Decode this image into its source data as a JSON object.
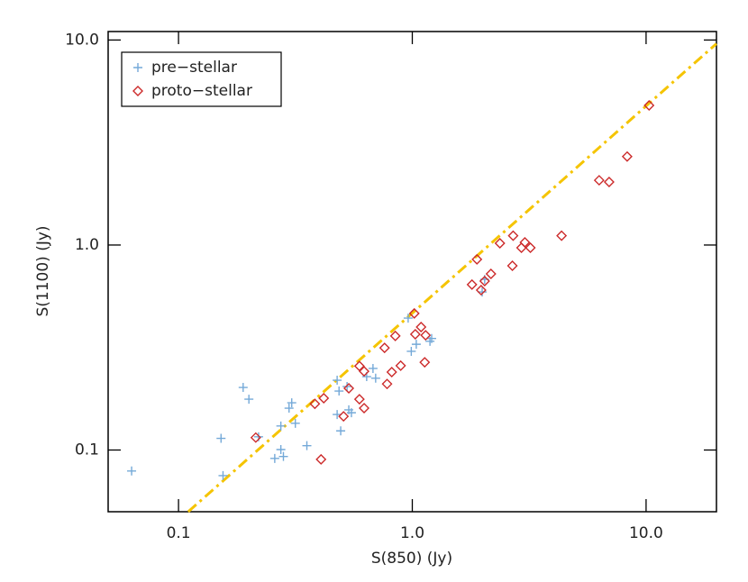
{
  "chart_data": {
    "type": "scatter",
    "xlabel": "S(850) (Jy)",
    "ylabel": "S(1100) (Jy)",
    "xlim": [
      0.05,
      20
    ],
    "ylim": [
      0.05,
      11
    ],
    "xscale": "log",
    "yscale": "log",
    "xticks": [
      0.1,
      {
        "value": 1,
        "label": "1.0"
      },
      {
        "value": 10,
        "label": "10.0"
      }
    ],
    "yticks": [
      0.1,
      {
        "value": 1,
        "label": "1.0"
      },
      {
        "value": 10,
        "label": "10.0"
      }
    ],
    "legend": "top-left",
    "series": [
      {
        "name": "pre−stellar",
        "color": "#74a9d8",
        "marker": "plus",
        "x": [
          0.063,
          0.152,
          0.155,
          0.189,
          0.2,
          0.258,
          0.274,
          0.281,
          0.274,
          0.297,
          0.305,
          0.316,
          0.354,
          0.22,
          0.477,
          0.477,
          0.494,
          0.486,
          0.526,
          0.535,
          0.549,
          0.638,
          0.679,
          0.697,
          0.96,
          0.99,
          1.04,
          1.19,
          1.21,
          1.99,
          2.04
        ],
        "y": [
          0.079,
          0.114,
          0.075,
          0.202,
          0.177,
          0.091,
          0.1005,
          0.093,
          0.131,
          0.16,
          0.17,
          0.135,
          0.105,
          0.116,
          0.219,
          0.149,
          0.124,
          0.194,
          0.204,
          0.157,
          0.152,
          0.228,
          0.25,
          0.224,
          0.44,
          0.303,
          0.328,
          0.339,
          0.35,
          0.59,
          0.68
        ]
      },
      {
        "name": "proto−stellar",
        "color": "#cc2a2a",
        "marker": "diamond",
        "x": [
          0.214,
          0.383,
          0.418,
          0.407,
          0.508,
          0.535,
          0.594,
          0.594,
          0.622,
          0.622,
          0.761,
          0.78,
          0.817,
          0.846,
          0.892,
          1.02,
          1.03,
          1.09,
          1.14,
          1.13,
          1.8,
          1.89,
          1.97,
          2.04,
          2.17,
          2.37,
          2.68,
          2.7,
          2.93,
          3.03,
          3.2,
          4.35,
          6.3,
          6.95,
          8.3,
          10.3
        ],
        "y": [
          0.115,
          0.168,
          0.179,
          0.09,
          0.146,
          0.2,
          0.177,
          0.257,
          0.242,
          0.16,
          0.315,
          0.21,
          0.24,
          0.36,
          0.258,
          0.464,
          0.367,
          0.398,
          0.363,
          0.268,
          0.641,
          0.851,
          0.603,
          0.667,
          0.723,
          1.02,
          0.792,
          1.11,
          0.97,
          1.03,
          0.97,
          1.11,
          2.07,
          2.03,
          2.7,
          4.8
        ]
      }
    ],
    "fit_line": {
      "x": [
        0.11,
        20
      ],
      "y": [
        0.05,
        9.6
      ],
      "color": "#f5c400"
    }
  }
}
